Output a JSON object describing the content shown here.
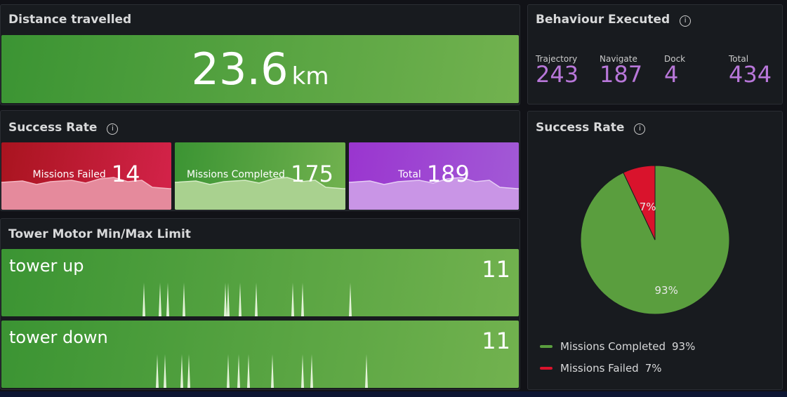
{
  "panels": {
    "distance": {
      "title": "Distance travelled",
      "value": 23.6,
      "unit": "km"
    },
    "behaviour": {
      "title": "Behaviour Executed",
      "stats": [
        {
          "label": "Trajectory",
          "value": 243
        },
        {
          "label": "Navigate",
          "value": 187
        },
        {
          "label": "Dock",
          "value": 4
        },
        {
          "label": "Total",
          "value": 434
        }
      ]
    },
    "success": {
      "title": "Success Rate",
      "stats": [
        {
          "label": "Missions Failed",
          "value": 14
        },
        {
          "label": "Missions Completed",
          "value": 175
        },
        {
          "label": "Total",
          "value": 189
        }
      ]
    },
    "tower": {
      "title": "Tower Motor Min/Max Limit",
      "rows": [
        {
          "label": "tower up",
          "value": 11
        },
        {
          "label": "tower down",
          "value": 11
        }
      ]
    }
  },
  "chart_data": {
    "type": "pie",
    "title": "Success Rate",
    "categories": [
      "Missions Completed",
      "Missions Failed"
    ],
    "values": [
      93,
      7
    ],
    "value_labels": [
      "93%",
      "7%"
    ],
    "colors": [
      "#5a9e3e",
      "#d9132c"
    ],
    "legend": "bottom-left"
  }
}
